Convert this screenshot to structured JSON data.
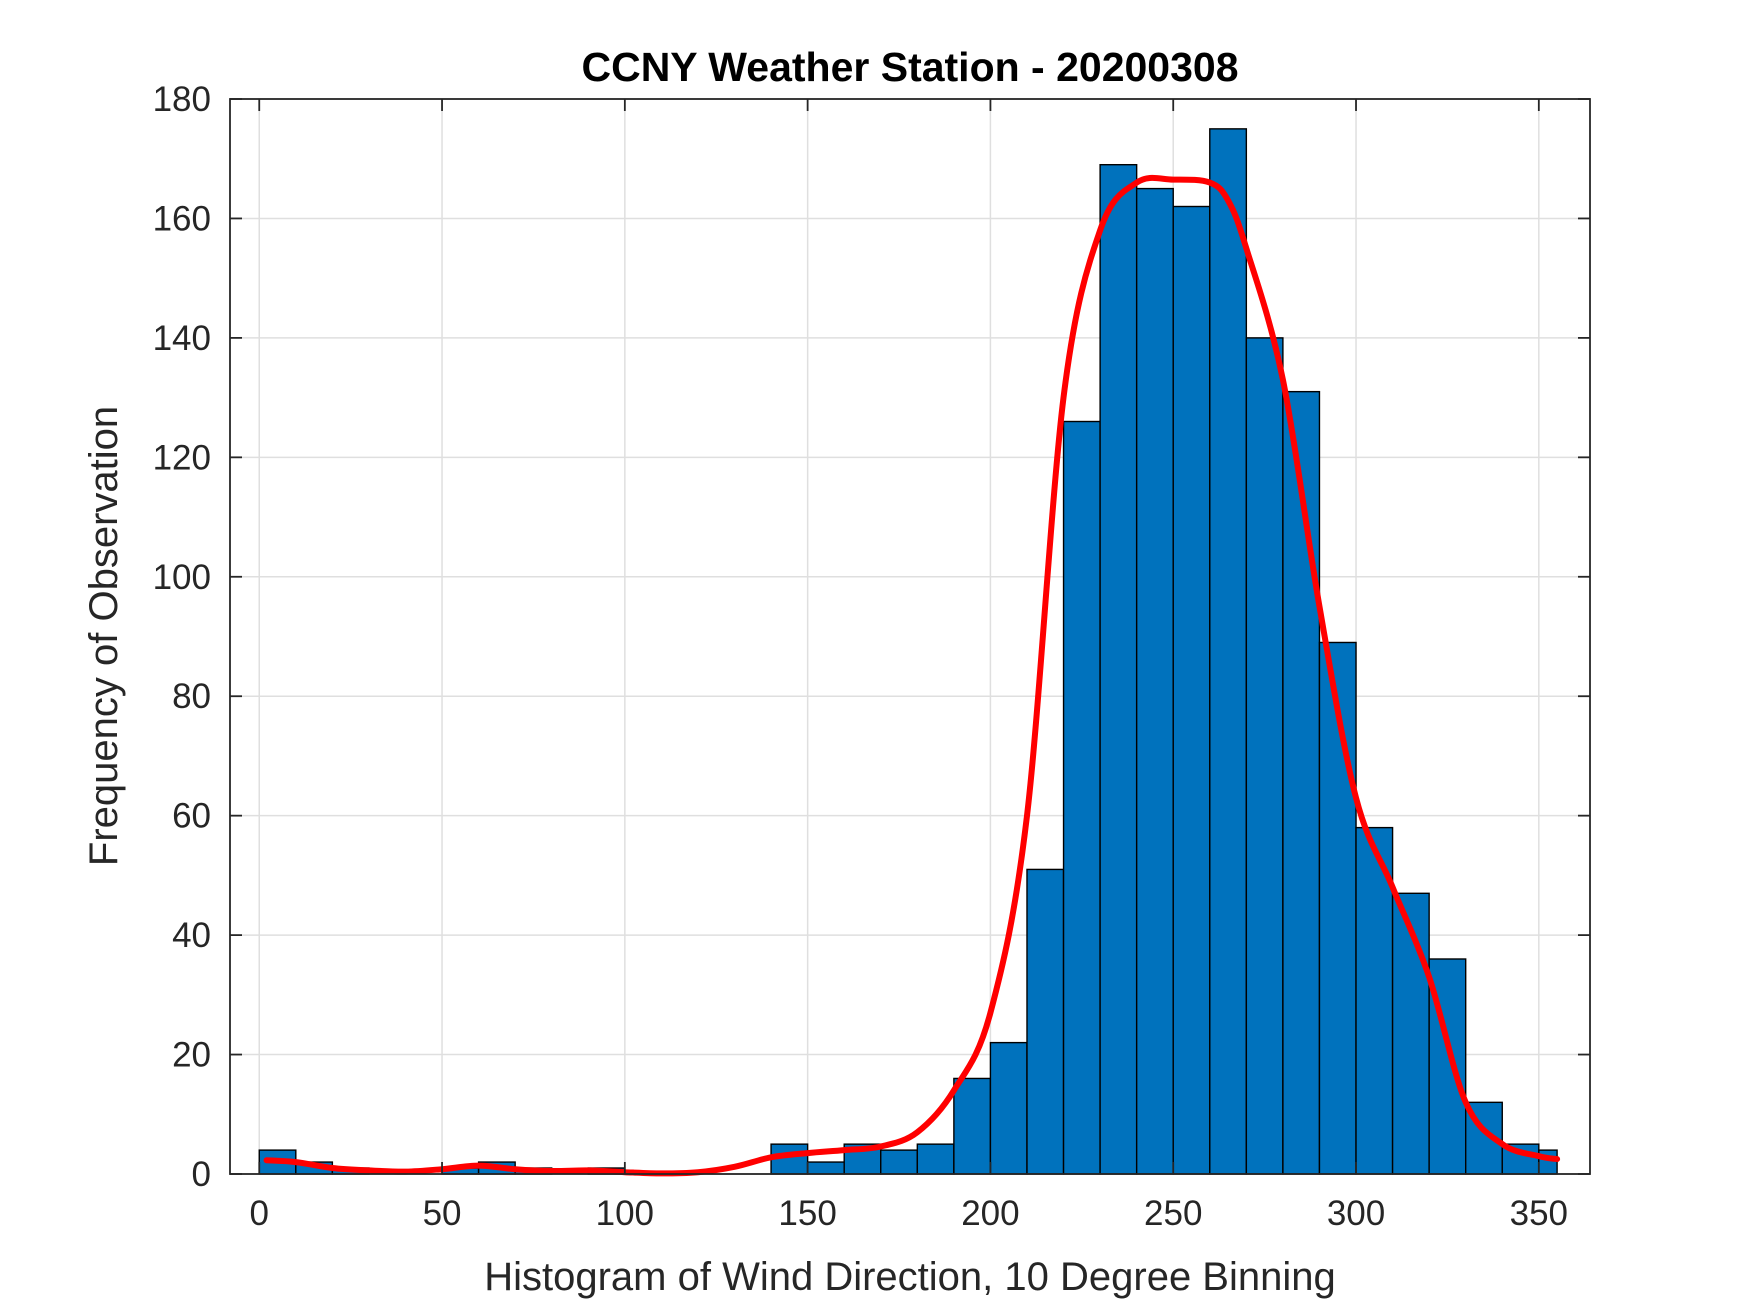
{
  "chart_data": {
    "type": "bar",
    "title": "CCNY Weather Station - 20200308",
    "xlabel": "Histogram of Wind Direction, 10 Degree Binning",
    "ylabel": "Frequency of Observation",
    "xlim": [
      -8,
      364
    ],
    "ylim": [
      0,
      180
    ],
    "xticks": [
      0,
      50,
      100,
      150,
      200,
      250,
      300,
      350
    ],
    "yticks": [
      0,
      20,
      40,
      60,
      80,
      100,
      120,
      140,
      160,
      180
    ],
    "grid": true,
    "bin_width": 10,
    "bins": [
      {
        "start": 0,
        "end": 10,
        "value": 4
      },
      {
        "start": 10,
        "end": 20,
        "value": 2
      },
      {
        "start": 20,
        "end": 30,
        "value": 1
      },
      {
        "start": 30,
        "end": 40,
        "value": 0
      },
      {
        "start": 40,
        "end": 50,
        "value": 0
      },
      {
        "start": 50,
        "end": 60,
        "value": 1
      },
      {
        "start": 60,
        "end": 70,
        "value": 2
      },
      {
        "start": 70,
        "end": 80,
        "value": 1
      },
      {
        "start": 80,
        "end": 90,
        "value": 0
      },
      {
        "start": 90,
        "end": 100,
        "value": 1
      },
      {
        "start": 100,
        "end": 110,
        "value": 0
      },
      {
        "start": 110,
        "end": 120,
        "value": 0
      },
      {
        "start": 120,
        "end": 130,
        "value": 0
      },
      {
        "start": 130,
        "end": 140,
        "value": 0
      },
      {
        "start": 140,
        "end": 150,
        "value": 5
      },
      {
        "start": 150,
        "end": 160,
        "value": 2
      },
      {
        "start": 160,
        "end": 170,
        "value": 5
      },
      {
        "start": 170,
        "end": 180,
        "value": 4
      },
      {
        "start": 180,
        "end": 190,
        "value": 5
      },
      {
        "start": 190,
        "end": 200,
        "value": 16
      },
      {
        "start": 200,
        "end": 210,
        "value": 22
      },
      {
        "start": 210,
        "end": 220,
        "value": 51
      },
      {
        "start": 220,
        "end": 230,
        "value": 126
      },
      {
        "start": 230,
        "end": 240,
        "value": 169
      },
      {
        "start": 240,
        "end": 250,
        "value": 165
      },
      {
        "start": 250,
        "end": 260,
        "value": 162
      },
      {
        "start": 260,
        "end": 270,
        "value": 175
      },
      {
        "start": 270,
        "end": 280,
        "value": 140
      },
      {
        "start": 280,
        "end": 290,
        "value": 131
      },
      {
        "start": 290,
        "end": 300,
        "value": 89
      },
      {
        "start": 300,
        "end": 310,
        "value": 58
      },
      {
        "start": 310,
        "end": 320,
        "value": 47
      },
      {
        "start": 320,
        "end": 330,
        "value": 36
      },
      {
        "start": 330,
        "end": 340,
        "value": 12
      },
      {
        "start": 340,
        "end": 350,
        "value": 5
      },
      {
        "start": 350,
        "end": 355,
        "value": 4
      }
    ],
    "series": [
      {
        "type": "line",
        "x": [
          2,
          10,
          20,
          30,
          40,
          50,
          60,
          70,
          80,
          90,
          100,
          110,
          120,
          130,
          140,
          150,
          160,
          170,
          180,
          190,
          200,
          210,
          220,
          230,
          240,
          250,
          260,
          265,
          270,
          280,
          290,
          300,
          310,
          320,
          330,
          340,
          350,
          355
        ],
        "y": [
          2.3,
          2.0,
          1.0,
          0.6,
          0.4,
          0.8,
          1.4,
          0.8,
          0.5,
          0.6,
          0.3,
          0.1,
          0.3,
          1.2,
          2.8,
          3.5,
          4.0,
          4.6,
          7.0,
          14.0,
          27.0,
          60.0,
          130.0,
          158.0,
          166.0,
          166.5,
          166.0,
          163.0,
          155.0,
          133.0,
          95.0,
          63.0,
          48.0,
          33.0,
          12.0,
          5.0,
          3.0,
          2.5
        ]
      }
    ],
    "colors": {
      "bar_fill": "#0072bd",
      "bar_edge": "#000000",
      "line": "#ff0000",
      "grid": "#dfdfdf",
      "axes": "#262626"
    }
  }
}
